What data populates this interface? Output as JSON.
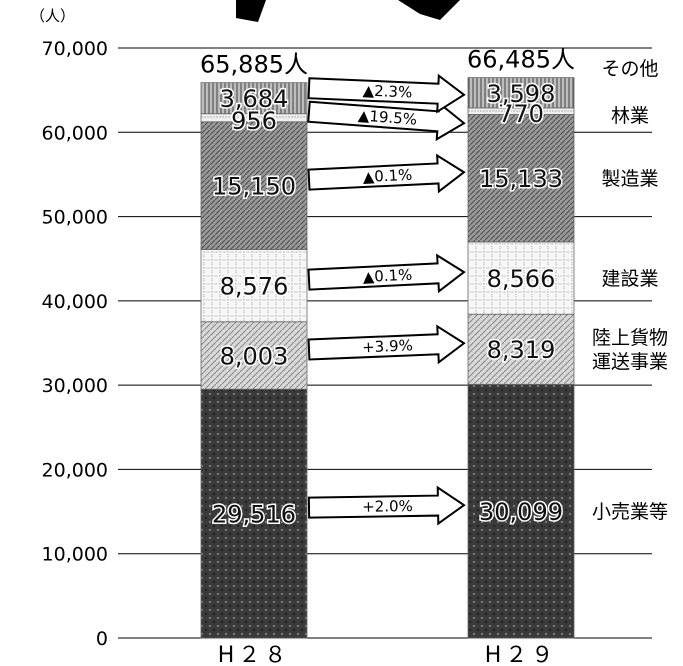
{
  "chart_data": {
    "type": "bar",
    "stacked": true,
    "unit_label": "（人）",
    "categories": [
      "H２８",
      "H２９"
    ],
    "totals": [
      "65,885人",
      "66,485人"
    ],
    "ylim": [
      0,
      70000
    ],
    "yticks": [
      0,
      10000,
      20000,
      30000,
      40000,
      50000,
      60000,
      70000
    ],
    "ytick_labels": [
      "0",
      "10,000",
      "20,000",
      "30,000",
      "40,000",
      "50,000",
      "60,000",
      "70,000"
    ],
    "grid": true,
    "series": [
      {
        "name": "小売業等",
        "values": [
          29516,
          30099
        ],
        "labels": [
          "29,516",
          "30,099"
        ],
        "change": "+2.0%",
        "fill": "#3a3a3a"
      },
      {
        "name": "陸上貨物\n運送事業",
        "values": [
          8003,
          8319
        ],
        "labels": [
          "8,003",
          "8,319"
        ],
        "change": "+3.9%",
        "fill": "#cfcfcf"
      },
      {
        "name": "建設業",
        "values": [
          8576,
          8566
        ],
        "labels": [
          "8,576",
          "8,566"
        ],
        "change": "▲0.1%",
        "fill": "#f2f2f2"
      },
      {
        "name": "製造業",
        "values": [
          15150,
          15133
        ],
        "labels": [
          "15,150",
          "15,133"
        ],
        "change": "▲0.1%",
        "fill": "#8a8a8a"
      },
      {
        "name": "林業",
        "values": [
          956,
          770
        ],
        "labels": [
          "956",
          "770"
        ],
        "change": "▲19.5%",
        "fill": "#e6e6e6"
      },
      {
        "name": "その他",
        "values": [
          3684,
          3598
        ],
        "labels": [
          "3,684",
          "3,598"
        ],
        "change": "▲2.3%",
        "fill": "#9a9a9a"
      }
    ]
  }
}
